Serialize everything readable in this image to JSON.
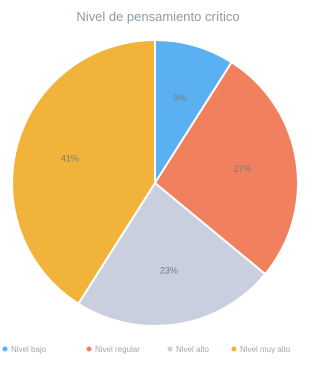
{
  "chart_data": {
    "type": "pie",
    "title": "Nivel de pensamiento crítico",
    "categories": [
      "Nivel bajo",
      "Nivel regular",
      "Nivel alto",
      "Nivel muy alto"
    ],
    "values": [
      9,
      27,
      23,
      41
    ],
    "data_labels": [
      "9%",
      "27%",
      "23%",
      "41%"
    ],
    "colors": [
      "#5ab0f0",
      "#f0805e",
      "#c9cfdf",
      "#f2b33b"
    ],
    "legend_position": "bottom",
    "start_angle_deg": 0,
    "direction": "clockwise"
  },
  "colors": {
    "title": "#8c9aa8",
    "label": "#7a7a7a",
    "legend_text": "#a0a8b4",
    "slice_border": "#ffffff"
  }
}
